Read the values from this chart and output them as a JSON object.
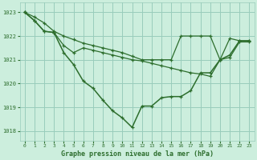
{
  "title": "Graphe pression niveau de la mer (hPa)",
  "bg_color": "#cceedd",
  "grid_color": "#99ccbb",
  "line_color": "#2d6e2d",
  "ylim": [
    1017.6,
    1023.4
  ],
  "yticks": [
    1018,
    1019,
    1020,
    1021,
    1022,
    1023
  ],
  "xlim": [
    -0.5,
    23.5
  ],
  "xticks": [
    0,
    1,
    2,
    3,
    4,
    5,
    6,
    7,
    8,
    9,
    10,
    11,
    12,
    13,
    14,
    15,
    16,
    17,
    18,
    19,
    20,
    21,
    22,
    23
  ],
  "hours": [
    0,
    1,
    2,
    3,
    4,
    5,
    6,
    7,
    8,
    9,
    10,
    11,
    12,
    13,
    14,
    15,
    16,
    17,
    18,
    19,
    20,
    21,
    22,
    23
  ],
  "line1": [
    1023.0,
    1022.8,
    1022.55,
    1022.2,
    1022.0,
    1021.85,
    1021.7,
    1021.6,
    1021.5,
    1021.4,
    1021.3,
    1021.15,
    1021.0,
    1021.0,
    1021.0,
    1021.0,
    1022.0,
    1022.0,
    1022.0,
    1022.0,
    1021.0,
    1021.9,
    1021.8,
    1021.8
  ],
  "line2": [
    1023.0,
    1022.65,
    1022.2,
    1022.15,
    1021.3,
    1020.8,
    1020.1,
    1019.8,
    1019.3,
    1018.85,
    1018.55,
    1018.15,
    1019.05,
    1019.05,
    1019.4,
    1019.45,
    1019.45,
    1019.7,
    1020.45,
    1020.45,
    1021.0,
    1021.2,
    1021.8,
    1021.8
  ],
  "line3": [
    1023.0,
    1022.65,
    1022.2,
    1022.15,
    1021.6,
    1021.3,
    1021.5,
    1021.4,
    1021.3,
    1021.2,
    1021.1,
    1021.0,
    1020.95,
    1020.85,
    1020.75,
    1020.65,
    1020.55,
    1020.45,
    1020.4,
    1020.3,
    1021.0,
    1021.1,
    1021.75,
    1021.75
  ]
}
